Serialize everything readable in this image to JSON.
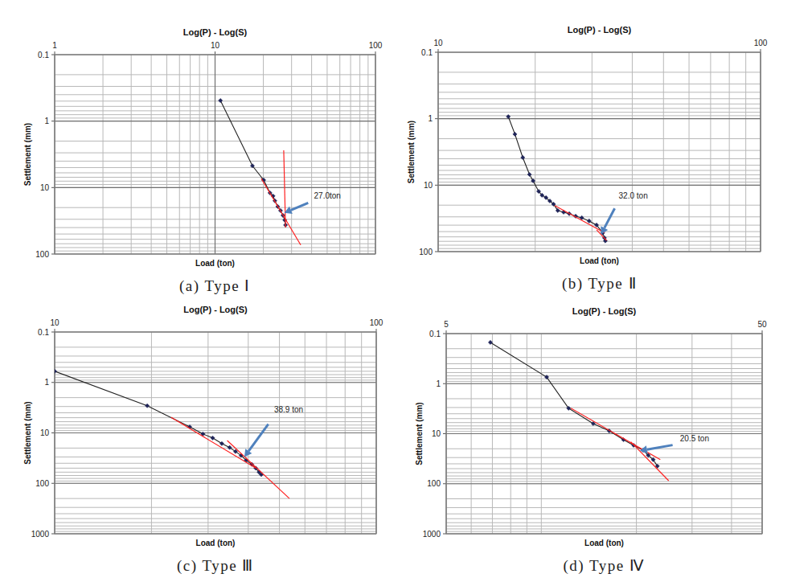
{
  "chart_data": [
    {
      "type": "line",
      "title": "Log(P) - Log(S)",
      "caption": "(a) Type Ⅰ",
      "x_label": "Load (ton)",
      "y_label": "Settlement (mm)",
      "log": true,
      "grid": true,
      "xlim": [
        1,
        100
      ],
      "xticks": [
        1,
        10,
        100
      ],
      "ylim": [
        100,
        0.1
      ],
      "yticks": [
        0.1,
        1,
        10,
        100
      ],
      "series": [
        {
          "color": "#1f2458",
          "marker": "diamond",
          "line_style": "solid",
          "x": [
            10.8,
            17.1,
            20.1,
            22.0,
            23.0,
            23.6,
            24.6,
            25.6,
            26.5,
            27.2,
            27.5
          ],
          "values": [
            0.49,
            4.7,
            7.7,
            12.0,
            13.4,
            15.8,
            19.3,
            22.2,
            26.2,
            30.9,
            36.6
          ]
        },
        {
          "color": "#ff2020",
          "marker": "none",
          "line_style": "solid",
          "x": [
            26.8,
            27.5
          ],
          "values": [
            2.75,
            40
          ]
        },
        {
          "color": "#ff2020",
          "marker": "none",
          "line_style": "solid",
          "x": [
            19.4,
            34.2
          ],
          "values": [
            7.3,
            73
          ]
        }
      ],
      "annotations": [
        {
          "text": "27.0ton",
          "x": 27.0,
          "y": 24
        }
      ]
    },
    {
      "type": "line",
      "title": "Log(P) - Log(S)",
      "caption": "(b) Type Ⅱ",
      "x_label": "Load (ton)",
      "y_label": "Settlement (mm)",
      "log": true,
      "grid": true,
      "xlim": [
        10,
        100
      ],
      "xticks": [
        10,
        100
      ],
      "ylim": [
        100,
        0.1
      ],
      "yticks": [
        0.1,
        1,
        10,
        100
      ],
      "series": [
        {
          "color": "#1f2458",
          "marker": "diamond",
          "line_style": "solid",
          "x": [
            16.5,
            17.3,
            18.3,
            19.2,
            19.7,
            20.5,
            21.0,
            21.6,
            22.2,
            22.8,
            23.5,
            24.5,
            25.5,
            26.7,
            27.9,
            29.4,
            31.0,
            32.4,
            32.8,
            33.0
          ],
          "values": [
            0.93,
            1.71,
            3.84,
            6.9,
            8.6,
            12.4,
            14.2,
            15.4,
            17.3,
            19.3,
            24.1,
            25.5,
            26.9,
            29.3,
            31.0,
            34.6,
            39.8,
            52.5,
            62.1,
            69
          ]
        },
        {
          "color": "#ff2020",
          "marker": "none",
          "line_style": "solid",
          "x": [
            23.0,
            32.8
          ],
          "values": [
            20.3,
            52
          ]
        },
        {
          "color": "#ff2020",
          "marker": "none",
          "line_style": "solid",
          "x": [
            31.0,
            33.3
          ],
          "values": [
            47,
            68
          ]
        }
      ],
      "annotations": [
        {
          "text": "32.0 ton",
          "x": 32.0,
          "y": 55
        }
      ]
    },
    {
      "type": "line",
      "title": "Log(P) - Log(S)",
      "caption": "(c) Type Ⅲ",
      "x_label": "Load (ton)",
      "y_label": "Settlement (mm)",
      "log": true,
      "grid": true,
      "xlim": [
        10,
        100
      ],
      "xticks": [
        10,
        100
      ],
      "ylim": [
        1000,
        0.1
      ],
      "yticks": [
        0.1,
        1,
        10,
        100,
        1000
      ],
      "series": [
        {
          "color": "#1f2458",
          "marker": "diamond",
          "line_style": "solid",
          "x": [
            10,
            19.4,
            26.3,
            28.9,
            31.0,
            33.1,
            35.0,
            36.5,
            38.0,
            39.4,
            41.0,
            42.2,
            43.2,
            43.9
          ],
          "values": [
            0.6,
            2.9,
            7.6,
            10.5,
            12.6,
            16.3,
            19.5,
            23.4,
            28,
            35,
            42,
            50,
            60,
            67
          ]
        },
        {
          "color": "#ff2020",
          "marker": "none",
          "line_style": "solid",
          "x": [
            23.0,
            42.2
          ],
          "values": [
            4.9,
            50
          ]
        },
        {
          "color": "#ff2020",
          "marker": "none",
          "line_style": "solid",
          "x": [
            34.4,
            53.7
          ],
          "values": [
            14.2,
            200
          ]
        }
      ],
      "annotations": [
        {
          "text": "38.9 ton",
          "x": 38.9,
          "y": 30
        }
      ]
    },
    {
      "type": "line",
      "title": "Log(P) - Log(S)",
      "caption": "(d) Type Ⅳ",
      "x_label": "Load (ton)",
      "y_label": "Settlement (mm)",
      "log": true,
      "grid": true,
      "xlim": [
        5,
        50
      ],
      "xticks": [
        5,
        50
      ],
      "ylim": [
        1000,
        0.1
      ],
      "yticks": [
        0.1,
        1,
        10,
        100,
        1000
      ],
      "series": [
        {
          "color": "#1f2458",
          "marker": "diamond",
          "line_style": "solid",
          "x": [
            6.9,
            10.4,
            12.2,
            14.6,
            16.4,
            18.2,
            19.6,
            21.0,
            21.8,
            22.6,
            23.3
          ],
          "values": [
            0.15,
            0.74,
            3.1,
            6.3,
            8.8,
            13.2,
            17.1,
            21.4,
            27,
            33,
            44.5
          ]
        },
        {
          "color": "#ff2020",
          "marker": "none",
          "line_style": "solid",
          "x": [
            12.4,
            23.8
          ],
          "values": [
            3.1,
            33
          ]
        },
        {
          "color": "#ff2020",
          "marker": "none",
          "line_style": "solid",
          "x": [
            19.2,
            25.3
          ],
          "values": [
            14.5,
            87
          ]
        }
      ],
      "annotations": [
        {
          "text": "20.5 ton",
          "x": 20.5,
          "y": 22
        }
      ]
    }
  ]
}
